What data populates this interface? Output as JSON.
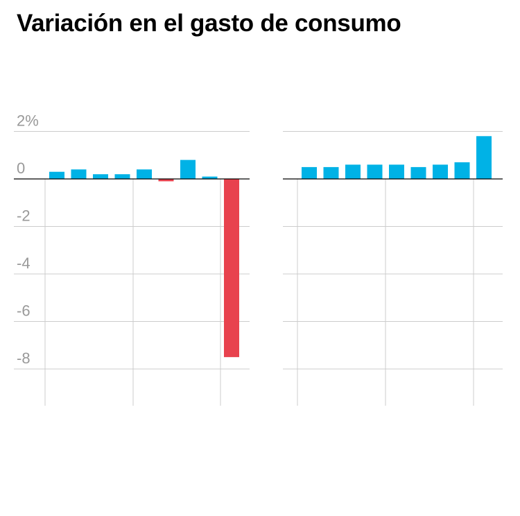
{
  "title": "Variación en el gasto de consumo",
  "colors": {
    "positive": "#00b2e6",
    "negative": "#e8424e",
    "grid": "#cccccc",
    "baseline": "#000000",
    "tick_label": "#999999"
  },
  "chart_data": [
    {
      "type": "bar",
      "ylim": [
        -9.5,
        2
      ],
      "yticks": [
        2,
        0,
        -2,
        -4,
        -6,
        -8
      ],
      "ytick_labels": [
        "2%",
        "0",
        "-2",
        "-4",
        "-6",
        "-8"
      ],
      "values": [
        0.3,
        0.4,
        0.2,
        0.2,
        0.4,
        -0.1,
        0.8,
        0.1,
        -7.5
      ]
    },
    {
      "type": "bar",
      "ylim": [
        -9.5,
        2
      ],
      "yticks": [
        2,
        0,
        -2,
        -4,
        -6,
        -8
      ],
      "values": [
        0.5,
        0.5,
        0.6,
        0.6,
        0.6,
        0.5,
        0.6,
        0.7,
        1.8
      ]
    }
  ]
}
